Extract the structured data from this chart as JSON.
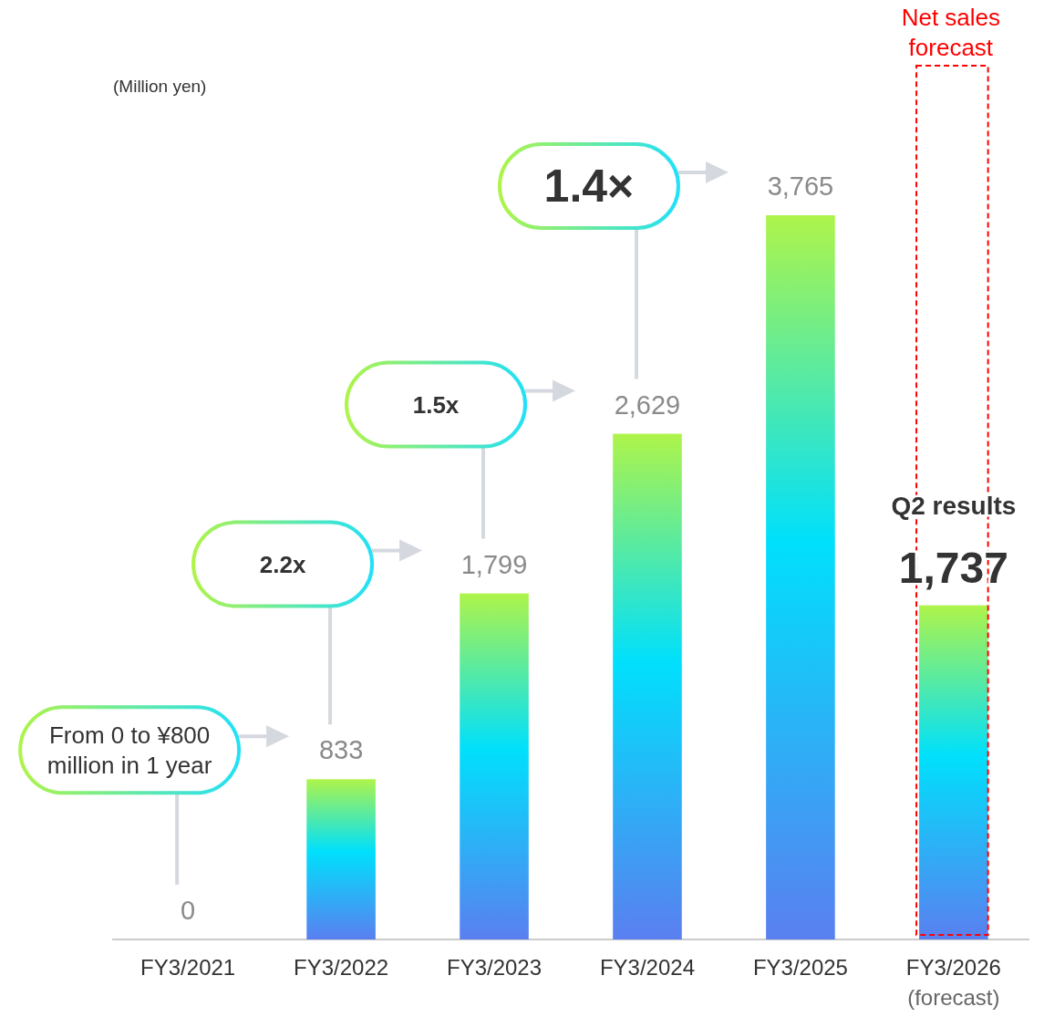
{
  "chart_data": {
    "type": "bar",
    "categories": [
      "FY3/2021",
      "FY3/2022",
      "FY3/2023",
      "FY3/2024",
      "FY3/2025",
      "FY3/2026 (forecast)"
    ],
    "series": [
      {
        "color": "#00e0fc",
        "values": [
          0,
          833,
          1799,
          2629,
          3765,
          1737
        ],
        "value_labels": [
          "0",
          "833",
          "1,799",
          "2,629",
          "3,765",
          "1,737"
        ]
      }
    ],
    "annotations": [
      "(Million yen)",
      "From 0 to ¥800 million in 1 year",
      "2.2x",
      "1.5x",
      "1.4×",
      "Net sales forecast",
      "Q2 results"
    ]
  }
}
